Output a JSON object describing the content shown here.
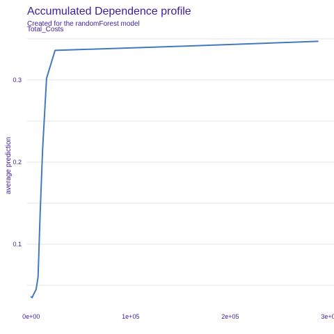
{
  "chart_data": {
    "type": "line",
    "title": "Accumulated Dependence profile",
    "subtitle": "Created for the randomForest model",
    "panel_label": "Total_Costs",
    "xlabel": "",
    "ylabel": "average prediction",
    "xlim": [
      -4000,
      300000
    ],
    "ylim": [
      0.028,
      0.355
    ],
    "grid": true,
    "legend": "none",
    "x_ticks": [
      {
        "value": 0,
        "label": "0e+00"
      },
      {
        "value": 100000,
        "label": "1e+05"
      },
      {
        "value": 200000,
        "label": "2e+05"
      },
      {
        "value": 300000,
        "label": "3e+05"
      }
    ],
    "y_ticks": [
      {
        "value": 0.1,
        "label": "0.1"
      },
      {
        "value": 0.2,
        "label": "0.2"
      },
      {
        "value": 0.3,
        "label": "0.3"
      }
    ],
    "y_minor_grid": [
      0.05,
      0.15,
      0.25,
      0.35
    ],
    "series": [
      {
        "color": "#4378bf",
        "x": [
          0,
          1000,
          2500,
          5000,
          7000,
          9000,
          11500,
          15500,
          24000,
          150000,
          288000
        ],
        "y": [
          0.036,
          0.035,
          0.039,
          0.045,
          0.06,
          0.135,
          0.215,
          0.302,
          0.336,
          0.341,
          0.347
        ]
      }
    ]
  }
}
